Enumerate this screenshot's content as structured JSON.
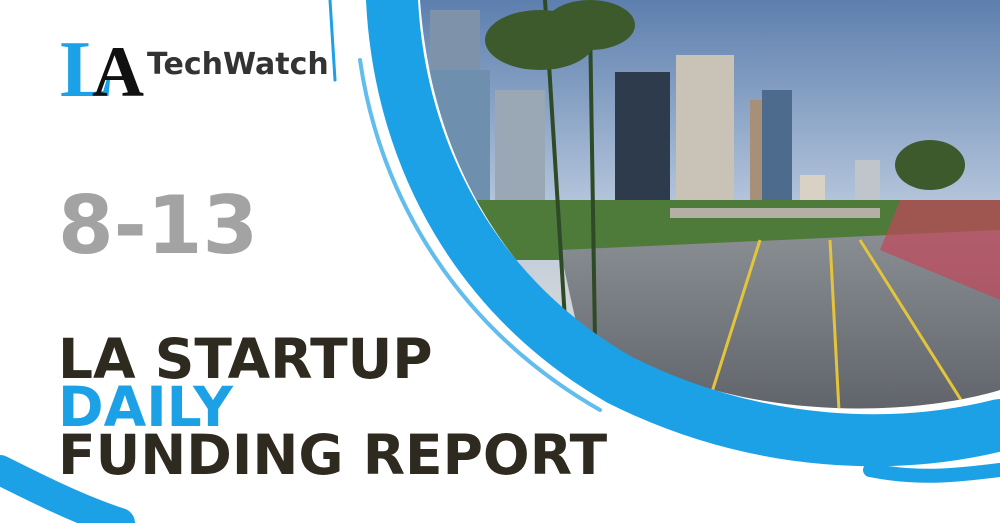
{
  "logo": {
    "mark_l": "L",
    "mark_a": "A",
    "name": "TechWatch"
  },
  "date": "8-13",
  "title": {
    "line1": "LA STARTUP",
    "line2": "DAILY",
    "line3": "FUNDING REPORT"
  }
}
